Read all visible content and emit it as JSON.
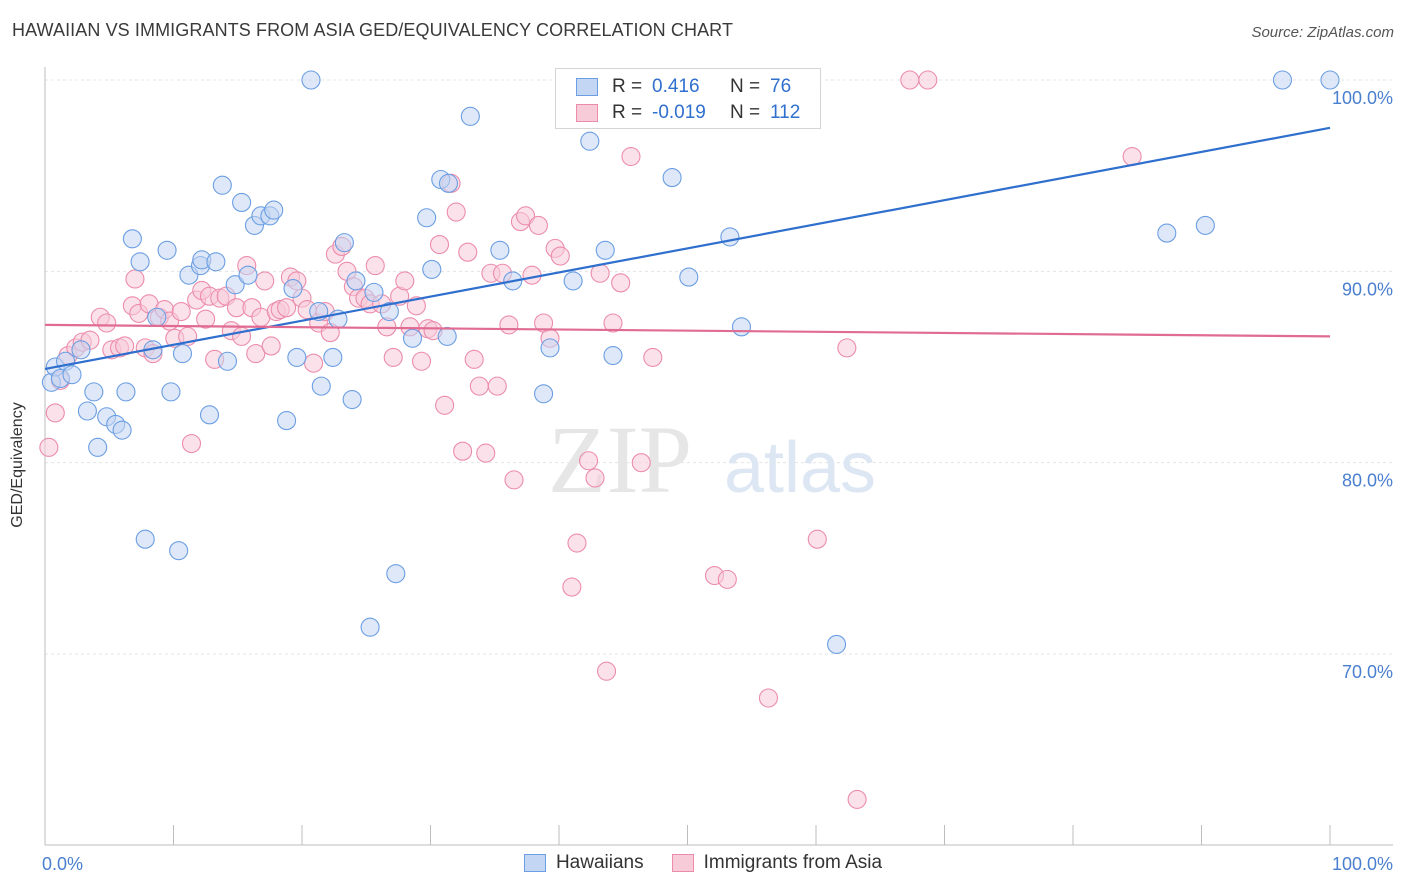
{
  "header": {
    "title": "HAWAIIAN VS IMMIGRANTS FROM ASIA GED/EQUIVALENCY CORRELATION CHART",
    "source": "Source: ZipAtlas.com"
  },
  "watermark": {
    "zip": "ZIP",
    "atlas": "atlas"
  },
  "stats": {
    "row1": {
      "r_label": "R =",
      "r_value": "0.416",
      "n_label": "N =",
      "n_value": "76"
    },
    "row2": {
      "r_label": "R =",
      "r_value": "-0.019",
      "n_label": "N =",
      "n_value": "112"
    }
  },
  "legend": {
    "item1": "Hawaiians",
    "item2": "Immigrants from Asia"
  },
  "colors": {
    "blue_fill": "#c3d6f3",
    "blue_stroke": "#6b9ee3",
    "blue_line": "#2f6fce",
    "pink_fill": "#f8cbd8",
    "pink_stroke": "#ec8cab",
    "pink_line": "#e06b93",
    "tick_label": "#4a7fcf"
  },
  "chart_data": {
    "type": "scatter",
    "title": "HAWAIIAN VS IMMIGRANTS FROM ASIA GED/EQUIVALENCY CORRELATION CHART",
    "xlabel": "",
    "ylabel": "GED/Equivalency",
    "xlim": [
      0,
      100
    ],
    "ylim": [
      60.3,
      101.5
    ],
    "x_tick_labels": [
      "0.0%",
      "100.0%"
    ],
    "y_ticks": [
      100,
      90,
      80,
      70
    ],
    "y_tick_labels": [
      "100.0%",
      "90.0%",
      "80.0%",
      "70.0%"
    ],
    "grid": true,
    "legend_position": "bottom-center",
    "series": [
      {
        "name": "Hawaiians",
        "trend": {
          "x": [
            0,
            100
          ],
          "y": [
            84.9,
            97.5
          ]
        },
        "points": [
          [
            0.5,
            84.2
          ],
          [
            0.8,
            85.0
          ],
          [
            1.2,
            84.4
          ],
          [
            1.6,
            85.3
          ],
          [
            2.1,
            84.6
          ],
          [
            2.8,
            85.9
          ],
          [
            3.3,
            82.7
          ],
          [
            3.8,
            83.7
          ],
          [
            4.1,
            80.8
          ],
          [
            4.8,
            82.4
          ],
          [
            5.5,
            82.0
          ],
          [
            6.0,
            81.7
          ],
          [
            6.3,
            83.7
          ],
          [
            6.8,
            91.7
          ],
          [
            7.4,
            90.5
          ],
          [
            7.8,
            76.0
          ],
          [
            8.4,
            85.9
          ],
          [
            8.7,
            87.6
          ],
          [
            9.5,
            91.1
          ],
          [
            9.8,
            83.7
          ],
          [
            10.4,
            75.4
          ],
          [
            10.7,
            85.7
          ],
          [
            11.2,
            89.8
          ],
          [
            12.1,
            90.3
          ],
          [
            12.2,
            90.6
          ],
          [
            12.8,
            82.5
          ],
          [
            13.3,
            90.5
          ],
          [
            13.8,
            94.5
          ],
          [
            14.2,
            85.3
          ],
          [
            14.8,
            89.3
          ],
          [
            15.3,
            93.6
          ],
          [
            15.8,
            89.8
          ],
          [
            16.3,
            92.4
          ],
          [
            16.8,
            92.9
          ],
          [
            17.5,
            92.9
          ],
          [
            17.8,
            93.2
          ],
          [
            18.8,
            82.2
          ],
          [
            19.3,
            89.1
          ],
          [
            19.6,
            85.5
          ],
          [
            20.7,
            100.0
          ],
          [
            21.3,
            87.9
          ],
          [
            21.5,
            84.0
          ],
          [
            22.4,
            85.5
          ],
          [
            22.8,
            87.5
          ],
          [
            23.3,
            91.5
          ],
          [
            23.9,
            83.3
          ],
          [
            24.2,
            89.5
          ],
          [
            25.3,
            71.4
          ],
          [
            25.6,
            88.9
          ],
          [
            26.8,
            87.9
          ],
          [
            27.3,
            74.2
          ],
          [
            28.6,
            86.5
          ],
          [
            29.7,
            92.8
          ],
          [
            30.1,
            90.1
          ],
          [
            30.8,
            94.8
          ],
          [
            31.3,
            86.6
          ],
          [
            31.4,
            94.6
          ],
          [
            33.1,
            98.1
          ],
          [
            35.4,
            91.1
          ],
          [
            36.4,
            89.5
          ],
          [
            38.8,
            83.6
          ],
          [
            39.3,
            86.0
          ],
          [
            41.1,
            89.5
          ],
          [
            42.4,
            96.8
          ],
          [
            43.6,
            91.1
          ],
          [
            44.2,
            85.6
          ],
          [
            45.8,
            100.0
          ],
          [
            48.8,
            94.9
          ],
          [
            50.1,
            89.7
          ],
          [
            53.3,
            91.8
          ],
          [
            54.2,
            87.1
          ],
          [
            61.6,
            70.5
          ],
          [
            87.3,
            92.0
          ],
          [
            90.3,
            92.4
          ],
          [
            96.3,
            100.0
          ],
          [
            100.0,
            100.0
          ]
        ]
      },
      {
        "name": "Immigrants from Asia",
        "trend": {
          "x": [
            0,
            100
          ],
          "y": [
            87.2,
            86.6
          ]
        },
        "points": [
          [
            0.3,
            80.8
          ],
          [
            0.8,
            82.6
          ],
          [
            1.2,
            84.3
          ],
          [
            1.8,
            85.6
          ],
          [
            2.4,
            86.0
          ],
          [
            2.9,
            86.3
          ],
          [
            3.5,
            86.4
          ],
          [
            4.3,
            87.6
          ],
          [
            4.8,
            87.3
          ],
          [
            5.2,
            85.9
          ],
          [
            5.8,
            86.0
          ],
          [
            6.2,
            86.1
          ],
          [
            6.8,
            88.2
          ],
          [
            7.0,
            89.6
          ],
          [
            7.3,
            87.8
          ],
          [
            7.8,
            86.0
          ],
          [
            8.1,
            88.3
          ],
          [
            8.4,
            85.7
          ],
          [
            8.9,
            87.6
          ],
          [
            9.3,
            88.0
          ],
          [
            9.7,
            87.4
          ],
          [
            10.1,
            86.5
          ],
          [
            10.6,
            87.9
          ],
          [
            11.1,
            86.6
          ],
          [
            11.4,
            81.0
          ],
          [
            11.8,
            88.5
          ],
          [
            12.2,
            89.0
          ],
          [
            12.5,
            87.5
          ],
          [
            12.8,
            88.7
          ],
          [
            13.2,
            85.4
          ],
          [
            13.6,
            88.6
          ],
          [
            14.1,
            88.7
          ],
          [
            14.5,
            86.9
          ],
          [
            14.9,
            88.1
          ],
          [
            15.3,
            86.6
          ],
          [
            15.7,
            90.3
          ],
          [
            16.1,
            88.1
          ],
          [
            16.4,
            85.7
          ],
          [
            16.8,
            87.6
          ],
          [
            17.1,
            89.5
          ],
          [
            17.6,
            86.1
          ],
          [
            18.0,
            87.9
          ],
          [
            18.3,
            88.0
          ],
          [
            18.8,
            88.1
          ],
          [
            19.1,
            89.7
          ],
          [
            19.6,
            89.5
          ],
          [
            20.0,
            88.6
          ],
          [
            20.4,
            88.0
          ],
          [
            20.9,
            85.2
          ],
          [
            21.3,
            87.3
          ],
          [
            21.8,
            87.9
          ],
          [
            22.2,
            86.8
          ],
          [
            22.6,
            90.9
          ],
          [
            23.1,
            91.3
          ],
          [
            23.5,
            90.0
          ],
          [
            24.0,
            89.2
          ],
          [
            24.4,
            88.6
          ],
          [
            24.9,
            88.6
          ],
          [
            25.3,
            88.3
          ],
          [
            25.7,
            90.3
          ],
          [
            26.2,
            88.3
          ],
          [
            26.6,
            87.1
          ],
          [
            27.1,
            85.5
          ],
          [
            27.6,
            88.7
          ],
          [
            28.0,
            89.5
          ],
          [
            28.4,
            87.1
          ],
          [
            28.9,
            88.2
          ],
          [
            29.3,
            85.3
          ],
          [
            29.8,
            87.0
          ],
          [
            30.2,
            86.9
          ],
          [
            30.7,
            91.4
          ],
          [
            31.1,
            83.0
          ],
          [
            31.6,
            94.6
          ],
          [
            32.0,
            93.1
          ],
          [
            32.5,
            80.6
          ],
          [
            32.9,
            91.0
          ],
          [
            33.4,
            85.4
          ],
          [
            33.8,
            84.0
          ],
          [
            34.3,
            80.5
          ],
          [
            34.7,
            89.9
          ],
          [
            35.2,
            84.0
          ],
          [
            35.6,
            89.9
          ],
          [
            36.1,
            87.2
          ],
          [
            36.5,
            79.1
          ],
          [
            37.0,
            92.6
          ],
          [
            37.4,
            92.9
          ],
          [
            37.9,
            89.8
          ],
          [
            38.4,
            92.4
          ],
          [
            38.8,
            87.3
          ],
          [
            39.3,
            86.5
          ],
          [
            39.7,
            91.2
          ],
          [
            40.1,
            90.8
          ],
          [
            41.0,
            73.5
          ],
          [
            41.4,
            75.8
          ],
          [
            42.3,
            80.1
          ],
          [
            42.8,
            79.2
          ],
          [
            43.2,
            89.9
          ],
          [
            43.7,
            69.1
          ],
          [
            44.2,
            87.3
          ],
          [
            44.8,
            89.4
          ],
          [
            45.6,
            96.0
          ],
          [
            46.4,
            80.0
          ],
          [
            47.3,
            85.5
          ],
          [
            52.1,
            74.1
          ],
          [
            53.1,
            73.9
          ],
          [
            56.3,
            67.7
          ],
          [
            60.1,
            76.0
          ],
          [
            62.4,
            86.0
          ],
          [
            63.2,
            62.4
          ],
          [
            67.3,
            100.0
          ],
          [
            68.7,
            100.0
          ],
          [
            84.6,
            96.0
          ]
        ]
      }
    ]
  }
}
